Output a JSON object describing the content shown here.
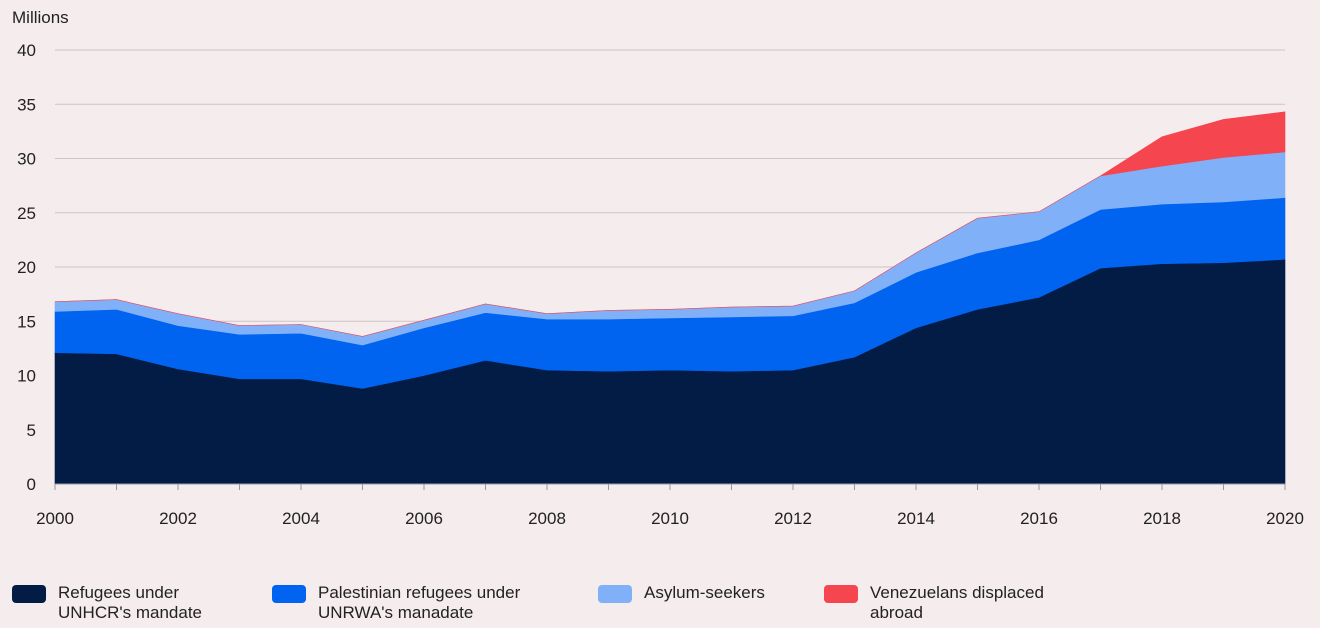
{
  "chart_data": {
    "type": "area",
    "stacked": true,
    "unit_label": "Millions",
    "x": [
      2000,
      2001,
      2002,
      2003,
      2004,
      2005,
      2006,
      2007,
      2008,
      2009,
      2010,
      2011,
      2012,
      2013,
      2014,
      2015,
      2016,
      2017,
      2018,
      2019,
      2020
    ],
    "x_ticks": [
      "2000",
      "2002",
      "2004",
      "2006",
      "2008",
      "2010",
      "2012",
      "2014",
      "2016",
      "2018",
      "2020"
    ],
    "y_ticks": [
      "0",
      "5",
      "10",
      "15",
      "20",
      "25",
      "30",
      "35",
      "40"
    ],
    "xlim": [
      2000,
      2020
    ],
    "ylim": [
      0,
      40
    ],
    "grid": true,
    "legend_position": "bottom",
    "series": [
      {
        "name": "Refugees under UNHCR's mandate",
        "color": "#021c45",
        "values": [
          12.1,
          12.0,
          10.6,
          9.7,
          9.7,
          8.8,
          10.0,
          11.4,
          10.5,
          10.4,
          10.5,
          10.4,
          10.5,
          11.7,
          14.4,
          16.1,
          17.2,
          19.9,
          20.3,
          20.4,
          20.7
        ]
      },
      {
        "name": "Palestinian refugees under UNRWA's manadate",
        "color": "#0064f0",
        "values": [
          3.8,
          4.1,
          4.0,
          4.1,
          4.2,
          4.0,
          4.4,
          4.4,
          4.7,
          4.8,
          4.8,
          5.0,
          5.0,
          5.0,
          5.1,
          5.2,
          5.3,
          5.4,
          5.5,
          5.6,
          5.7
        ]
      },
      {
        "name": "Asylum-seekers",
        "color": "#80b1f8",
        "values": [
          0.9,
          0.9,
          1.1,
          0.8,
          0.8,
          0.8,
          0.7,
          0.8,
          0.5,
          0.8,
          0.8,
          0.9,
          0.9,
          1.1,
          1.8,
          3.2,
          2.6,
          3.1,
          3.5,
          4.1,
          4.2
        ]
      },
      {
        "name": "Venezuelans displaced abroad",
        "color": "#f5454f",
        "values": [
          0,
          0,
          0,
          0,
          0,
          0,
          0,
          0,
          0,
          0,
          0,
          0,
          0,
          0,
          0,
          0,
          0,
          0,
          2.7,
          3.5,
          3.7
        ]
      }
    ],
    "legend": {
      "labels": [
        [
          "Refugees under",
          "UNHCR's mandate"
        ],
        [
          "Palestinian refugees under",
          "UNRWA's manadate"
        ],
        [
          "Asylum-seekers"
        ],
        [
          "Venezuelans displaced",
          "abroad"
        ]
      ]
    }
  }
}
